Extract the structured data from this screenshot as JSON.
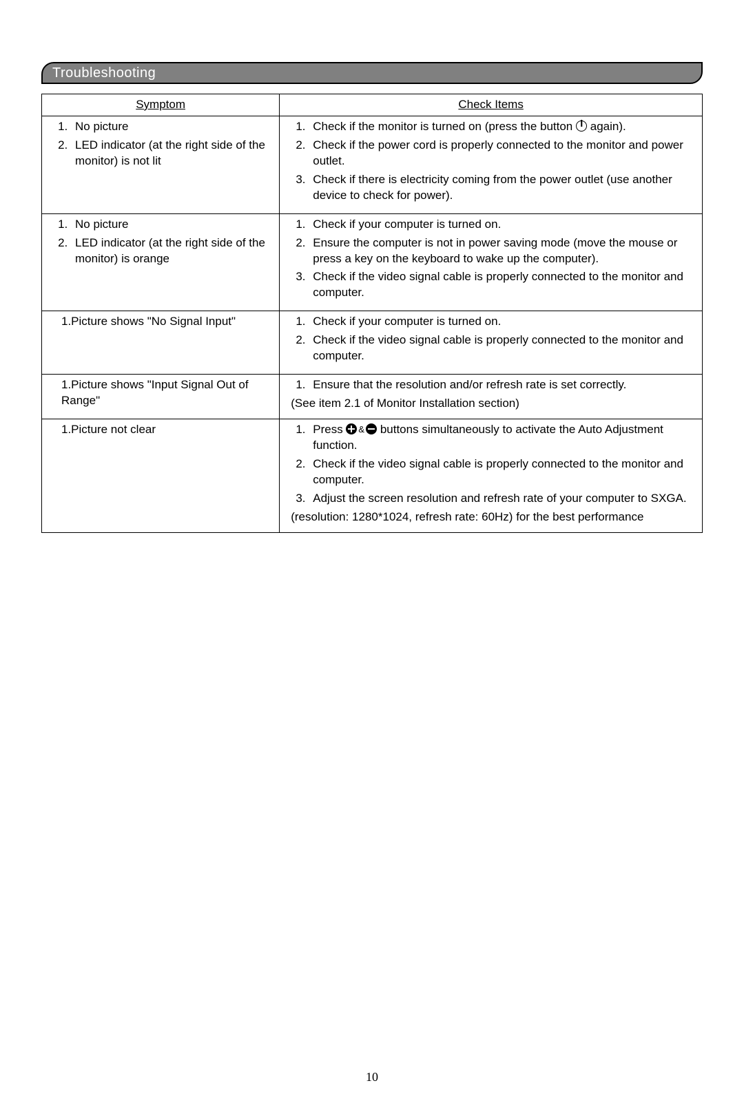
{
  "title": "Troubleshooting",
  "headers": {
    "symptom": "Symptom",
    "check": "Check Items"
  },
  "rows": [
    {
      "symptoms": [
        "No picture",
        "LED indicator (at the right side of the monitor) is not lit"
      ],
      "checks": [
        {
          "pre": "Check if the monitor is turned on (press the button ",
          "icon": "power",
          "post": " again)."
        },
        {
          "text": "Check if the power cord is properly connected to the monitor and power outlet."
        },
        {
          "text": "Check if there is electricity coming from the power outlet (use another device to check for power)."
        }
      ]
    },
    {
      "symptoms": [
        "No picture",
        "LED indicator (at the right side of the monitor) is orange"
      ],
      "checks": [
        {
          "text": "Check if your computer is turned on."
        },
        {
          "text": "Ensure the computer is not in power saving mode (move the mouse or press a key on the keyboard to wake up the computer)."
        },
        {
          "text": "Check if the video signal cable is properly connected to the monitor and computer."
        }
      ]
    },
    {
      "symptom_plain": "1.Picture shows \"No Signal   Input\"",
      "checks": [
        {
          "text": "Check if your computer is turned on."
        },
        {
          "text": "Check if the video signal cable is properly connected to the monitor and computer."
        }
      ]
    },
    {
      "symptom_plain": "1.Picture shows \"Input Signal   Out of Range\"",
      "checks": [
        {
          "text": "Ensure that the resolution and/or refresh rate is set correctly."
        }
      ],
      "note": "(See item 2.1 of Monitor Installation section)"
    },
    {
      "symptom_plain": "1.Picture not clear",
      "checks": [
        {
          "pre": "Press  ",
          "icon": "plusminus",
          "post": " buttons simultaneously to activate   the Auto Adjustment function."
        },
        {
          "text": "Check if the video signal cable is properly connected to the monitor and computer."
        },
        {
          "text": "Adjust the screen resolution and refresh rate of your computer to SXGA."
        }
      ],
      "note": "(resolution: 1280*1024, refresh rate: 60Hz) for the best performance"
    }
  ],
  "page_number": "10",
  "colors": {
    "bar_bg": "#808080",
    "bar_fg": "#ffffff",
    "border": "#000000"
  }
}
